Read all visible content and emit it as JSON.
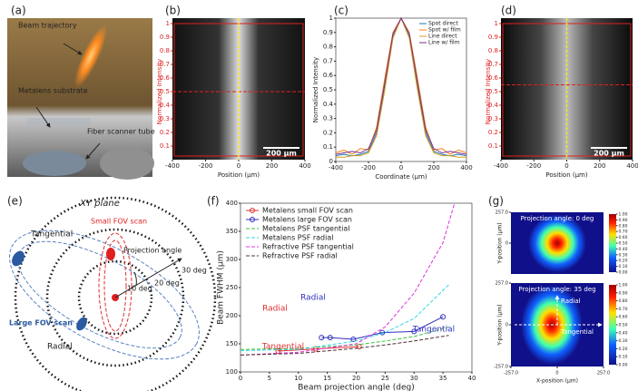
{
  "panel_labels": [
    "(a)",
    "(b)",
    "(c)",
    "(d)",
    "(e)",
    "(f)",
    "(g)"
  ],
  "photo": {
    "labels": [
      "Beam trajectory",
      "Metalens substrate",
      "Fiber scanner tube"
    ]
  },
  "diagram": {
    "title": "XY plane",
    "tangential": "Tangential",
    "small_fov": "Small FOV scan",
    "projection_angle": "Projection angle",
    "ring_labels": [
      "30 deg",
      "20 deg",
      "10 deg"
    ],
    "large_fov": "Large FOV scan",
    "radial": "Radial"
  },
  "chart_data": [
    {
      "type": "image",
      "xlabel": "Position (μm)",
      "ylabel": "Normalized Intensity",
      "xlim": [
        -400,
        400
      ],
      "ylim": [
        0,
        1
      ],
      "xticks": [
        -400,
        -200,
        0,
        200,
        400
      ],
      "yticks": [
        0.1,
        0.2,
        0.3,
        0.4,
        0.5,
        0.6,
        0.7,
        0.8,
        0.9,
        1
      ],
      "axis_color": "#e02020",
      "hline": 0.5,
      "vline": 0,
      "scalebar": "200 μm"
    },
    {
      "type": "line",
      "xlabel": "Coordinate (μm)",
      "ylabel": "Normalized Intensity",
      "xlim": [
        -400,
        400
      ],
      "ylim": [
        0,
        1
      ],
      "xticks": [
        -400,
        -200,
        0,
        200,
        400
      ],
      "yticks": [
        0,
        0.1,
        0.2,
        0.3,
        0.4,
        0.5,
        0.6,
        0.7,
        0.8,
        0.9,
        1
      ],
      "x": [
        -400,
        -350,
        -300,
        -250,
        -200,
        -150,
        -100,
        -50,
        0,
        50,
        100,
        150,
        200,
        250,
        300,
        350,
        400
      ],
      "series": [
        {
          "name": "Spot direct",
          "color": "#1f77b4",
          "values": [
            0.04,
            0.05,
            0.04,
            0.05,
            0.07,
            0.2,
            0.52,
            0.87,
            1,
            0.87,
            0.52,
            0.2,
            0.07,
            0.05,
            0.04,
            0.05,
            0.04
          ]
        },
        {
          "name": "Spot w/ film",
          "color": "#ff7f0e",
          "values": [
            0.06,
            0.08,
            0.05,
            0.09,
            0.08,
            0.24,
            0.58,
            0.9,
            1,
            0.9,
            0.58,
            0.24,
            0.08,
            0.09,
            0.05,
            0.08,
            0.06
          ]
        },
        {
          "name": "Line direct",
          "color": "#d4a017",
          "values": [
            0.03,
            0.03,
            0.04,
            0.04,
            0.06,
            0.18,
            0.5,
            0.86,
            1,
            0.86,
            0.5,
            0.18,
            0.06,
            0.04,
            0.04,
            0.03,
            0.03
          ]
        },
        {
          "name": "Line w/ film",
          "color": "#7e2f8e",
          "values": [
            0.05,
            0.06,
            0.07,
            0.06,
            0.09,
            0.22,
            0.55,
            0.89,
            1,
            0.89,
            0.55,
            0.22,
            0.09,
            0.06,
            0.07,
            0.06,
            0.05
          ]
        }
      ]
    },
    {
      "type": "image",
      "xlabel": "Position (μm)",
      "ylabel": "Normalized Intensity",
      "xlim": [
        -400,
        400
      ],
      "ylim": [
        0,
        1
      ],
      "xticks": [
        -400,
        -200,
        0,
        200,
        400
      ],
      "yticks": [
        0.1,
        0.2,
        0.3,
        0.4,
        0.5,
        0.6,
        0.7,
        0.8,
        0.9,
        1
      ],
      "axis_color": "#e02020",
      "hline": 0.55,
      "vline": 0,
      "scalebar": "200 μm"
    },
    {
      "type": "xyline",
      "xlabel": "Beam projection angle (deg)",
      "ylabel": "Beam FWHM (μm)",
      "xlim": [
        0,
        40
      ],
      "ylim": [
        100,
        400
      ],
      "xticks": [
        0,
        5,
        10,
        15,
        20,
        25,
        30,
        35,
        40
      ],
      "yticks": [
        100,
        150,
        200,
        250,
        300,
        350,
        400
      ],
      "series": [
        {
          "name": "Metalens small FOV scan",
          "color": "#e03030",
          "style": "marker",
          "x": [
            6.5,
            13,
            20.5
          ],
          "values": [
            137,
            141,
            145
          ]
        },
        {
          "name": "Metalens large FOV scan",
          "color": "#3030c0",
          "style": "marker",
          "x": [
            14,
            15.5,
            19.5,
            24.5,
            30,
            35
          ],
          "values": [
            161,
            161,
            158,
            170,
            172,
            198
          ]
        },
        {
          "name": "Metalens PSF tangential",
          "color": "#40c040",
          "style": "dashed",
          "x": [
            0,
            10,
            20,
            25,
            30,
            36
          ],
          "values": [
            140,
            142,
            148,
            155,
            163,
            180
          ]
        },
        {
          "name": "Metalens PSF radial",
          "color": "#30d8e0",
          "style": "dashed",
          "x": [
            0,
            10,
            20,
            25,
            30,
            36
          ],
          "values": [
            138,
            140,
            155,
            170,
            195,
            255
          ]
        },
        {
          "name": "Refractive PSF tangential",
          "color": "#e030e0",
          "style": "dashed",
          "x": [
            0,
            10,
            20,
            25,
            30,
            35,
            37
          ],
          "values": [
            130,
            135,
            150,
            180,
            240,
            330,
            400
          ]
        },
        {
          "name": "Refractive PSF radial",
          "color": "#503030",
          "style": "dashed",
          "x": [
            0,
            10,
            20,
            25,
            30,
            36
          ],
          "values": [
            130,
            133,
            142,
            148,
            155,
            165
          ]
        }
      ],
      "annotations": [
        {
          "text": "Radial",
          "color": "#e03030"
        },
        {
          "text": "Tangential",
          "color": "#e03030"
        },
        {
          "text": "Radial",
          "color": "#3030c0"
        },
        {
          "text": "Tangential",
          "color": "#3030c0"
        }
      ]
    },
    {
      "type": "heatmap",
      "title": "Projection angle: 0 deg",
      "ylabel": "Y-position (μm)",
      "xlim": [
        -257,
        257
      ],
      "ylim": [
        -257,
        257
      ],
      "yticks": [
        {
          "value": 257,
          "label": "257.0"
        },
        0
      ],
      "colorbar_ticks": [
        {
          "value": 0,
          "label": "0.00"
        },
        {
          "value": 0.1,
          "label": "0.10"
        },
        {
          "value": 0.2,
          "label": "0.20"
        },
        {
          "value": 0.3,
          "label": "0.30"
        },
        {
          "value": 0.4,
          "label": "0.40"
        },
        {
          "value": 0.5,
          "label": "0.50"
        },
        {
          "value": 0.6,
          "label": "0.60"
        },
        {
          "value": 0.7,
          "label": "0.70"
        },
        {
          "value": 0.8,
          "label": "0.80"
        },
        {
          "value": 0.9,
          "label": "0.90"
        },
        {
          "value": 1,
          "label": "1.00"
        }
      ]
    },
    {
      "type": "heatmap",
      "title": "Projection angle: 35 deg",
      "ylabel": "Y-position (μm)",
      "xlabel": "X-position (μm)",
      "xlim": [
        -257,
        257
      ],
      "ylim": [
        -257,
        257
      ],
      "xticks": [
        {
          "value": -257,
          "label": "-257.0"
        },
        0,
        {
          "value": 257,
          "label": "257.0"
        }
      ],
      "yticks": [
        {
          "value": 257,
          "label": "257.0"
        },
        0,
        {
          "value": -257,
          "label": "-257.0"
        }
      ],
      "arrows": [
        "Radial",
        "Tangential"
      ],
      "colorbar_ticks": [
        {
          "value": 0,
          "label": "0.00"
        },
        {
          "value": 0.1,
          "label": "0.10"
        },
        {
          "value": 0.2,
          "label": "0.20"
        },
        {
          "value": 0.3,
          "label": "0.30"
        },
        {
          "value": 0.4,
          "label": "0.40"
        },
        {
          "value": 0.5,
          "label": "0.50"
        },
        {
          "value": 0.6,
          "label": "0.60"
        },
        {
          "value": 0.7,
          "label": "0.70"
        },
        {
          "value": 0.8,
          "label": "0.80"
        },
        {
          "value": 0.9,
          "label": "0.90"
        },
        {
          "value": 1,
          "label": "1.00"
        }
      ]
    }
  ]
}
